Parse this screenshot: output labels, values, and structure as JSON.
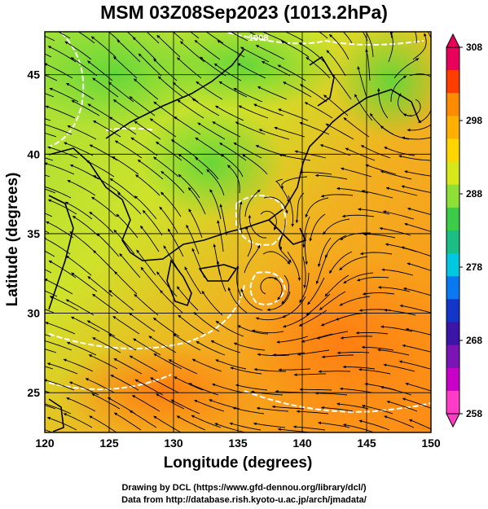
{
  "title": "MSM 03Z08Sep2023 (1013.2hPa)",
  "x_axis": {
    "label": "Longitude (degrees)",
    "ticks": [
      "120",
      "125",
      "130",
      "135",
      "140",
      "145",
      "150"
    ]
  },
  "y_axis": {
    "label": "Latitude  (degrees)",
    "ticks": [
      "25",
      "30",
      "35",
      "40",
      "45"
    ]
  },
  "colorbar": {
    "ticks": [
      "308",
      "298",
      "288",
      "278",
      "268",
      "258"
    ],
    "colors": [
      "#e8005a",
      "#ff3d00",
      "#ff8c00",
      "#ffb000",
      "#ffd500",
      "#d7e81a",
      "#8fe036",
      "#3ccc4a",
      "#1bbf86",
      "#00c8e0",
      "#0a78f0",
      "#1436c8",
      "#3b14a8",
      "#7a14b4",
      "#c800c8",
      "#ff3cc8"
    ]
  },
  "contour_label": "1008",
  "credits": {
    "line1": "Drawing by DCL (https://www.gfd-dennou.org/library/dcl/)",
    "line2": "Data from http://database.rish.kyoto-u.ac.jp/arch/jmadata/"
  }
}
